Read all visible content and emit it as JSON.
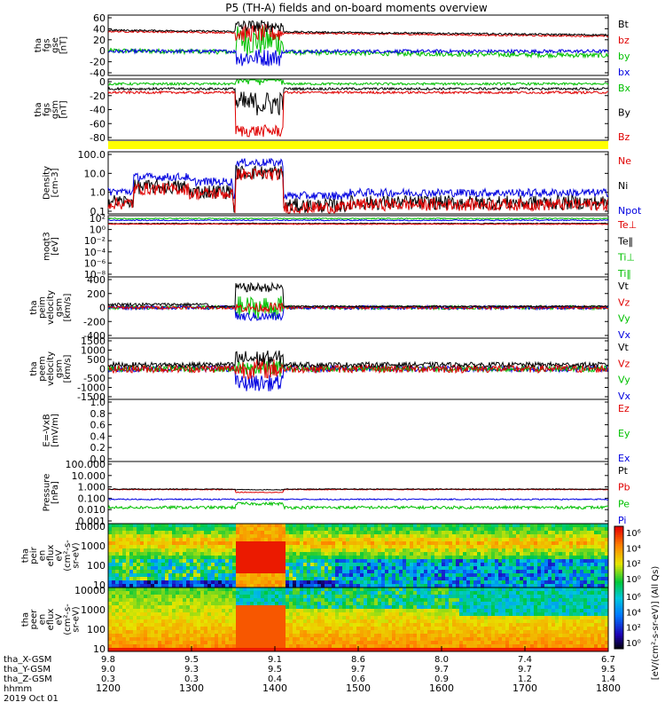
{
  "title": "P5 (TH-A) fields and on-board moments overview",
  "chart_data": {
    "type": "line",
    "title": "P5 (TH-A) fields and on-board moments overview",
    "date": "2019 Oct 01",
    "time_axis": {
      "label": "hhmm",
      "ticks": [
        "1200",
        "1300",
        "1400",
        "1500",
        "1600",
        "1700",
        "1800"
      ],
      "range": [
        "1200",
        "1800"
      ]
    },
    "ephemeris": [
      {
        "label": "tha_X-GSM",
        "values": [
          "9.8",
          "9.5",
          "9.1",
          "8.6",
          "8.0",
          "7.4",
          "6.7"
        ]
      },
      {
        "label": "tha_Y-GSM",
        "values": [
          "9.0",
          "9.3",
          "9.5",
          "9.7",
          "9.7",
          "9.7",
          "9.5"
        ]
      },
      {
        "label": "tha_Z-GSM",
        "values": [
          "0.3",
          "0.3",
          "0.4",
          "0.6",
          "0.9",
          "1.2",
          "1.4"
        ]
      }
    ],
    "panels": [
      {
        "id": "fgs-gse",
        "ylabel": [
          "tha",
          "fgs",
          "gse",
          "[nT]"
        ],
        "yticks": [
          "60",
          "40",
          "20",
          "0",
          "-20",
          "-40"
        ],
        "ylim": [
          -40,
          60
        ],
        "legend": [
          {
            "name": "Bt",
            "color": "#000000"
          },
          {
            "name": "bz",
            "color": "#e00000"
          },
          {
            "name": "by",
            "color": "#00c000"
          },
          {
            "name": "bx",
            "color": "#0000e0"
          }
        ]
      },
      {
        "id": "fgs-gsm",
        "ylabel": [
          "tha",
          "fgs",
          "gsm",
          "[nT]"
        ],
        "yticks": [
          "0",
          "-20",
          "-40",
          "-60",
          "-80"
        ],
        "ylim": [
          -90,
          10
        ],
        "legend": [
          {
            "name": "Bx",
            "color": "#00c000"
          },
          {
            "name": "By",
            "color": "#000000"
          },
          {
            "name": "Bz",
            "color": "#e00000"
          }
        ]
      },
      {
        "id": "density",
        "ylabel": [
          "Density",
          "[cm-3]"
        ],
        "yticks": [
          "100.0",
          "10.0",
          "1.0",
          "0.1"
        ],
        "ylim": [
          0.1,
          100
        ],
        "log": true,
        "legend": [
          {
            "name": "Ne",
            "color": "#e00000"
          },
          {
            "name": "Ni",
            "color": "#000000"
          },
          {
            "name": "Npot",
            "color": "#0000e0"
          }
        ]
      },
      {
        "id": "temperature",
        "ylabel": [
          "moqt3",
          "[eV]"
        ],
        "yticks": [
          "10^2",
          "10^0",
          "10^-2",
          "10^-4",
          "10^-6",
          "10^-8"
        ],
        "ylim": [
          1e-08,
          1000.0
        ],
        "log": true,
        "legend": [
          {
            "name": "Te⊥",
            "color": "#e00000"
          },
          {
            "name": "Te‖",
            "color": "#000000"
          },
          {
            "name": "Ti⊥",
            "color": "#00c000"
          },
          {
            "name": "Ti‖",
            "color": "#00c000"
          }
        ]
      },
      {
        "id": "peim-velocity",
        "ylabel": [
          "tha",
          "peim",
          "velocity",
          "gsm",
          "[km/s]"
        ],
        "yticks": [
          "400",
          "200",
          "0",
          "-200",
          "-400"
        ],
        "ylim": [
          -400,
          400
        ],
        "legend": [
          {
            "name": "Vt",
            "color": "#000000"
          },
          {
            "name": "Vz",
            "color": "#e00000"
          },
          {
            "name": "Vy",
            "color": "#00c000"
          },
          {
            "name": "Vx",
            "color": "#0000e0"
          }
        ]
      },
      {
        "id": "peem-velocity",
        "ylabel": [
          "tha",
          "peem",
          "velocity",
          "gsm",
          "[km/s]"
        ],
        "yticks": [
          "1500",
          "1000",
          "500",
          "0",
          "-500",
          "-1000",
          "-1500"
        ],
        "ylim": [
          -1500,
          1500
        ],
        "legend": [
          {
            "name": "Vt",
            "color": "#000000"
          },
          {
            "name": "Vz",
            "color": "#e00000"
          },
          {
            "name": "Vy",
            "color": "#00c000"
          },
          {
            "name": "Vx",
            "color": "#0000e0"
          }
        ]
      },
      {
        "id": "efield",
        "ylabel": [
          "E=-VxB",
          "[mV/m]"
        ],
        "yticks": [
          "1.0",
          "0.8",
          "0.6",
          "0.4",
          "0.2",
          "0.0"
        ],
        "ylim": [
          0,
          1
        ],
        "legend": [
          {
            "name": "Ez",
            "color": "#e00000"
          },
          {
            "name": "Ey",
            "color": "#00c000"
          },
          {
            "name": "Ex",
            "color": "#0000e0"
          }
        ]
      },
      {
        "id": "pressure",
        "ylabel": [
          "Pressure",
          "[nPa]"
        ],
        "yticks": [
          "100.000",
          "10.000",
          "1.000",
          "0.100",
          "0.010",
          "0.001"
        ],
        "ylim": [
          0.001,
          100
        ],
        "log": true,
        "legend": [
          {
            "name": "Pt",
            "color": "#000000"
          },
          {
            "name": "Pb",
            "color": "#e00000"
          },
          {
            "name": "Pe",
            "color": "#00c000"
          },
          {
            "name": "Pi",
            "color": "#0000e0"
          }
        ]
      },
      {
        "id": "peir-en",
        "ylabel": [
          "tha",
          "peir",
          "en",
          "eflux",
          "eV",
          "(cm^2-s-",
          "sr-eV)"
        ],
        "yticks": [
          "10000",
          "1000",
          "100",
          "10"
        ],
        "ylim": [
          5,
          30000
        ],
        "log": true,
        "spectrogram": true
      },
      {
        "id": "peer-en",
        "ylabel": [
          "tha",
          "peer",
          "en",
          "eflux",
          "eV",
          "(cm^2-s-",
          "sr-eV)"
        ],
        "yticks": [
          "10000",
          "1000",
          "100",
          "10"
        ],
        "ylim": [
          5,
          30000
        ],
        "log": true,
        "spectrogram": true
      }
    ],
    "colorbar": {
      "ticks": [
        "10^6",
        "10^4",
        "10^2",
        "10^0"
      ],
      "label": "[eV/(cm^2-s-sr-eV)] (All Qs)"
    }
  }
}
